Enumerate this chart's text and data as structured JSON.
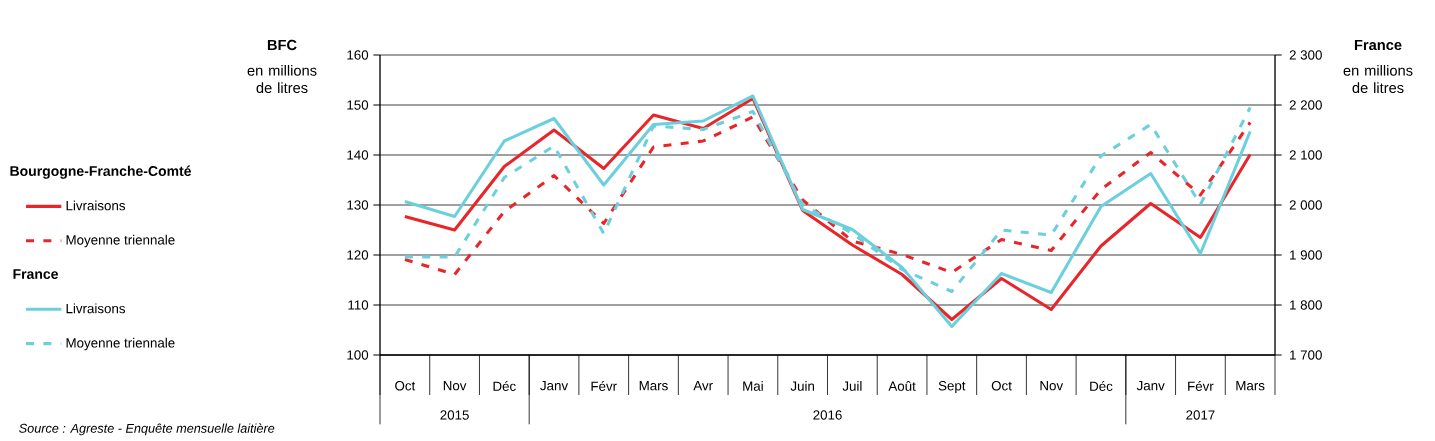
{
  "chart_data": {
    "type": "line",
    "categories": [
      "Oct",
      "Nov",
      "Déc",
      "Janv",
      "Févr",
      "Mars",
      "Avr",
      "Mai",
      "Juin",
      "Juil",
      "Août",
      "Sept",
      "Oct",
      "Nov",
      "Déc",
      "Janv",
      "Févr",
      "Mars"
    ],
    "ylabel": "BFC",
    "y2label": "France",
    "ylim": [
      100,
      160
    ],
    "yticks": [
      100,
      110,
      120,
      130,
      140,
      150,
      160
    ],
    "y2lim": [
      1700,
      2300
    ],
    "y2ticks": [
      {
        "value": 1700,
        "label": "1 700"
      },
      {
        "value": 1800,
        "label": "1 800"
      },
      {
        "value": 1900,
        "label": "1 900"
      },
      {
        "value": 2000,
        "label": "2 000"
      },
      {
        "value": 2100,
        "label": "2 100"
      },
      {
        "value": 2200,
        "label": "2 200"
      },
      {
        "value": 2300,
        "label": "2 300"
      }
    ],
    "grid": "y",
    "legend": "left",
    "series": [
      {
        "name": "Livraisons",
        "color": "#e8262a",
        "line_style": "solid",
        "values": [
          127.7,
          125.0,
          137.7,
          145.0,
          137.3,
          148.0,
          145.3,
          151.3,
          128.9,
          122.0,
          116.1,
          107.1,
          115.3,
          109.1,
          121.8,
          130.3,
          123.5,
          140.1
        ]
      },
      {
        "name": "Moyenne triennale",
        "color": "#e8262a",
        "line_style": "dashed",
        "values": [
          119.1,
          116.1,
          128.7,
          135.9,
          126.3,
          141.6,
          142.8,
          147.6,
          131.0,
          122.8,
          120.1,
          116.5,
          123.1,
          120.9,
          133.1,
          140.5,
          132.0,
          146.5
        ]
      },
      {
        "name": "Livraisons",
        "color": "#6ccfdd",
        "line_style": "solid",
        "axis": "y2",
        "values": [
          2007,
          1977,
          2128,
          2173,
          2040,
          2161,
          2168,
          2218,
          1991,
          1951,
          1875,
          1757,
          1863,
          1825,
          1997,
          2063,
          1903,
          2147
        ]
      },
      {
        "name": "Moyenne triennale",
        "color": "#6ccfdd",
        "line_style": "dashed",
        "axis": "y2",
        "values": [
          1896,
          1896,
          2055,
          2118,
          1943,
          2158,
          2151,
          2187,
          2001,
          1943,
          1871,
          1827,
          1950,
          1940,
          2098,
          2161,
          2001,
          2195
        ]
      }
    ],
    "annotations": [
      "en millions de litres",
      "en millions de litres",
      "Bourgogne-Franche-Comté",
      "France",
      "2015",
      "2016",
      "2017",
      "Source : Agreste - Enquête mensuelle laitière"
    ]
  }
}
